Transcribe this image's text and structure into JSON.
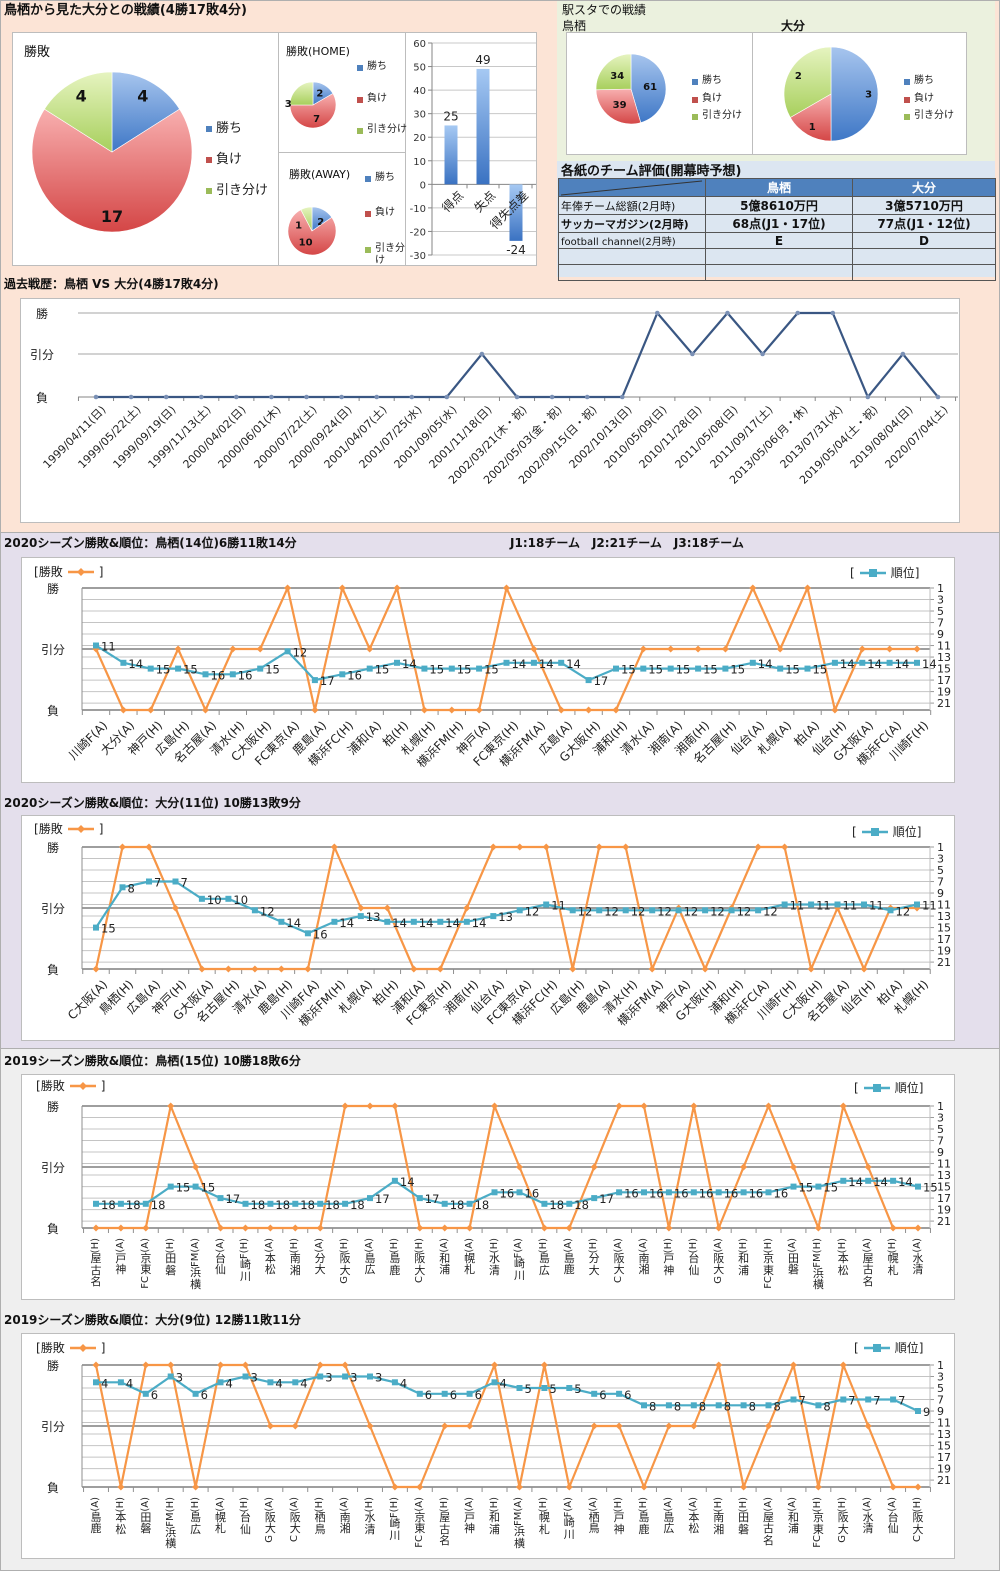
{
  "page": {
    "top_title": "鳥栖から見た大分との戦績(4勝17敗4分)",
    "stadium": {
      "title": "駅スタでの戦績"
    },
    "ratings": {
      "title": "各紙のチーム評価(開幕時予想)",
      "columns": [
        "",
        "鳥栖",
        "大分"
      ],
      "rows": [
        [
          "年俸チーム総額(2月時)",
          "5億8610万円",
          "3億5710万円"
        ],
        [
          "サッカーマガジン(2月時)",
          "68点(J1・17位)",
          "77点(J1・12位)"
        ],
        [
          "football channel(2月時)",
          "E",
          "D"
        ],
        [
          "",
          "",
          ""
        ],
        [
          "",
          "",
          ""
        ]
      ]
    },
    "league_info": "J1:18チーム　J2:21チーム　J3:18チーム"
  },
  "legend_brackets": {
    "open": "[",
    "close": "]"
  },
  "colors": {
    "win": "#4F81BD",
    "loss": "#C0504D",
    "draw": "#9BBB59",
    "result_line": "#F79646",
    "rank_line": "#4BACC6",
    "history_line": "#3A5783",
    "table_header": "#4F81BD"
  },
  "chart_data": [
    {
      "type": "pie",
      "title": "勝敗",
      "labels": [
        "勝ち",
        "負け",
        "引き分け"
      ],
      "values": [
        4,
        17,
        4
      ]
    },
    {
      "type": "pie",
      "title": "勝敗(HOME)",
      "labels": [
        "勝ち",
        "負け",
        "引き分け"
      ],
      "values": [
        2,
        7,
        3
      ]
    },
    {
      "type": "pie",
      "title": "勝敗(AWAY)",
      "labels": [
        "勝ち",
        "負け",
        "引き分け"
      ],
      "values": [
        2,
        10,
        1
      ]
    },
    {
      "type": "bar",
      "title": "",
      "categories": [
        "得点",
        "失点",
        "得失点差"
      ],
      "values": [
        25,
        49,
        -24
      ],
      "ylim": [
        -30,
        60
      ],
      "yticks": [
        60,
        50,
        40,
        30,
        20,
        10,
        0,
        -10,
        -20,
        -30
      ],
      "grid": true
    },
    {
      "type": "pie",
      "title": "鳥栖",
      "labels": [
        "勝ち",
        "負け",
        "引き分け"
      ],
      "values": [
        61,
        39,
        34
      ]
    },
    {
      "type": "pie",
      "title": "大分",
      "labels": [
        "勝ち",
        "負け",
        "引き分け"
      ],
      "values": [
        3,
        1,
        2
      ]
    },
    {
      "type": "line",
      "title": "過去戦歴：鳥栖 VS 大分(4勝17敗4分)",
      "categories": [
        "1999/04/11(日)",
        "1999/05/22(土)",
        "1999/09/19(日)",
        "1999/11/13(土)",
        "2000/04/02(日)",
        "2000/06/01(木)",
        "2000/07/22(土)",
        "2000/09/24(日)",
        "2001/04/07(土)",
        "2001/07/25(水)",
        "2001/09/05(水)",
        "2001/11/18(日)",
        "2002/03/21(木・祝)",
        "2002/05/03(金・祝)",
        "2002/09/15(日・祝)",
        "2002/10/13(日)",
        "2010/05/09(日)",
        "2010/11/28(日)",
        "2011/05/08(日)",
        "2011/09/17(土)",
        "2013/05/06(月・休)",
        "2013/07/31(水)",
        "2019/05/04(土・祝)",
        "2019/08/04(日)",
        "2020/07/04(土)"
      ],
      "y_ticks": [
        "勝",
        "引分",
        "負"
      ],
      "series": [
        {
          "name": "勝敗",
          "values": [
            "負",
            "負",
            "負",
            "負",
            "負",
            "負",
            "負",
            "負",
            "負",
            "負",
            "負",
            "引分",
            "負",
            "負",
            "負",
            "負",
            "勝",
            "引分",
            "勝",
            "引分",
            "勝",
            "勝",
            "負",
            "引分",
            "負"
          ]
        }
      ]
    },
    {
      "type": "line",
      "title": "2020シーズン勝敗&順位：鳥栖(14位)6勝11敗14分",
      "categories": [
        "川崎F(A)",
        "大分(A)",
        "神戸(H)",
        "広島(H)",
        "名古屋(A)",
        "清水(H)",
        "C大阪(H)",
        "FC東京(A)",
        "鹿島(A)",
        "横浜FC(H)",
        "浦和(A)",
        "柏(H)",
        "札幌(H)",
        "横浜FM(H)",
        "神戸(A)",
        "FC東京(H)",
        "横浜FM(A)",
        "広島(A)",
        "G大阪(H)",
        "浦和(H)",
        "清水(A)",
        "湘南(A)",
        "湘南(H)",
        "名古屋(H)",
        "仙台(A)",
        "札幌(A)",
        "柏(A)",
        "仙台(H)",
        "G大阪(A)",
        "横浜FC(A)",
        "川崎F(H)"
      ],
      "y_left_ticks": [
        "勝",
        "引分",
        "負"
      ],
      "y_right_ticks": [
        1,
        3,
        5,
        7,
        9,
        11,
        13,
        15,
        17,
        19,
        21
      ],
      "series": [
        {
          "name": "勝敗",
          "values": [
            "引分",
            "負",
            "負",
            "引分",
            "負",
            "引分",
            "引分",
            "勝",
            "負",
            "勝",
            "引分",
            "勝",
            "負",
            "負",
            "負",
            "勝",
            "引分",
            "負",
            "負",
            "負",
            "引分",
            "引分",
            "引分",
            "引分",
            "勝",
            "引分",
            "勝",
            "負",
            "引分",
            "引分",
            "引分"
          ]
        },
        {
          "name": "順位",
          "values": [
            11,
            14,
            15,
            15,
            16,
            16,
            15,
            12,
            17,
            16,
            15,
            14,
            15,
            15,
            15,
            14,
            14,
            14,
            17,
            15,
            15,
            15,
            15,
            15,
            14,
            15,
            15,
            14,
            14,
            14,
            14
          ]
        }
      ]
    },
    {
      "type": "line",
      "title": "2020シーズン勝敗&順位：大分(11位) 10勝13敗9分",
      "categories": [
        "C大阪(A)",
        "鳥栖(H)",
        "広島(A)",
        "神戸(H)",
        "G大阪(A)",
        "名古屋(H)",
        "清水(A)",
        "鹿島(H)",
        "川崎F(A)",
        "横浜FM(H)",
        "札幌(A)",
        "柏(H)",
        "浦和(A)",
        "FC東京(H)",
        "湘南(H)",
        "仙台(A)",
        "FC東京(A)",
        "横浜FC(H)",
        "広島(H)",
        "鹿島(A)",
        "清水(H)",
        "横浜FM(A)",
        "神戸(A)",
        "G大阪(H)",
        "浦和(H)",
        "横浜FC(A)",
        "川崎F(H)",
        "C大阪(H)",
        "名古屋(A)",
        "仙台(H)",
        "柏(A)",
        "札幌(H)"
      ],
      "y_left_ticks": [
        "勝",
        "引分",
        "負"
      ],
      "y_right_ticks": [
        1,
        3,
        5,
        7,
        9,
        11,
        13,
        15,
        17,
        19,
        21
      ],
      "series": [
        {
          "name": "勝敗",
          "values": [
            "負",
            "勝",
            "勝",
            "引分",
            "負",
            "負",
            "負",
            "負",
            "負",
            "勝",
            "引分",
            "引分",
            "負",
            "負",
            "引分",
            "勝",
            "勝",
            "勝",
            "負",
            "勝",
            "勝",
            "負",
            "引分",
            "負",
            "引分",
            "勝",
            "勝",
            "負",
            "引分",
            "負",
            "引分",
            "引分"
          ]
        },
        {
          "name": "順位",
          "values": [
            15,
            8,
            7,
            7,
            10,
            10,
            12,
            14,
            16,
            14,
            13,
            14,
            14,
            14,
            14,
            13,
            12,
            11,
            12,
            12,
            12,
            12,
            12,
            12,
            12,
            12,
            11,
            11,
            11,
            11,
            12,
            11
          ]
        }
      ]
    },
    {
      "type": "line",
      "title": "2019シーズン勝敗&順位：鳥栖(15位) 10勝18敗6分",
      "categories": [
        "名古屋(H)",
        "神戸(A)",
        "FC東京(A)",
        "磐田(H)",
        "横浜FM(A)",
        "仙台(A)",
        "川崎F(H)",
        "松本(A)",
        "湘南(H)",
        "大分(A)",
        "G大阪(H)",
        "広島(A)",
        "鹿島(H)",
        "C大阪(H)",
        "浦和(A)",
        "札幌(A)",
        "清水(H)",
        "川崎F(A)",
        "広島(H)",
        "鹿島(A)",
        "大分(H)",
        "C大阪(A)",
        "湘南(A)",
        "神戸(H)",
        "仙台(H)",
        "G大阪(A)",
        "浦和(H)",
        "FC東京(H)",
        "磐田(A)",
        "横浜FM(H)",
        "松本(H)",
        "名古屋(A)",
        "札幌(H)",
        "清水(A)"
      ],
      "y_left_ticks": [
        "勝",
        "引分",
        "負"
      ],
      "y_right_ticks": [
        1,
        3,
        5,
        7,
        9,
        11,
        13,
        15,
        17,
        19,
        21
      ],
      "series": [
        {
          "name": "勝敗",
          "values": [
            "負",
            "負",
            "負",
            "勝",
            "引分",
            "負",
            "負",
            "負",
            "負",
            "負",
            "勝",
            "勝",
            "勝",
            "負",
            "負",
            "負",
            "勝",
            "引分",
            "負",
            "負",
            "引分",
            "勝",
            "勝",
            "負",
            "勝",
            "負",
            "引分",
            "勝",
            "引分",
            "負",
            "勝",
            "引分",
            "負",
            "負"
          ]
        },
        {
          "name": "順位",
          "values": [
            18,
            18,
            18,
            15,
            15,
            17,
            18,
            18,
            18,
            18,
            18,
            17,
            14,
            17,
            18,
            18,
            16,
            16,
            18,
            18,
            17,
            16,
            16,
            16,
            16,
            16,
            16,
            16,
            15,
            15,
            14,
            14,
            14,
            15
          ]
        }
      ]
    },
    {
      "type": "line",
      "title": "2019シーズン勝敗&順位：大分(9位) 12勝11敗11分",
      "categories": [
        "鹿島(A)",
        "松本(H)",
        "磐田(A)",
        "横浜FM(H)",
        "広島(H)",
        "札幌(A)",
        "仙台(H)",
        "G大阪(A)",
        "C大阪(A)",
        "鳥栖(H)",
        "湘南(A)",
        "清水(H)",
        "川崎F(H)",
        "FC東京(A)",
        "名古屋(H)",
        "神戸(A)",
        "浦和(H)",
        "横浜FM(A)",
        "札幌(H)",
        "川崎F(A)",
        "鳥栖(A)",
        "神戸(H)",
        "鹿島(H)",
        "広島(A)",
        "松本(A)",
        "湘南(H)",
        "磐田(H)",
        "名古屋(A)",
        "浦和(A)",
        "FC東京(H)",
        "G大阪(H)",
        "清水(A)",
        "仙台(A)",
        "C大阪(H)"
      ],
      "y_left_ticks": [
        "勝",
        "引分",
        "負"
      ],
      "y_right_ticks": [
        1,
        3,
        5,
        7,
        9,
        11,
        13,
        15,
        17,
        19,
        21
      ],
      "series": [
        {
          "name": "勝敗",
          "values": [
            "勝",
            "負",
            "勝",
            "勝",
            "負",
            "勝",
            "勝",
            "引分",
            "引分",
            "勝",
            "勝",
            "引分",
            "負",
            "負",
            "引分",
            "引分",
            "勝",
            "負",
            "勝",
            "負",
            "引分",
            "引分",
            "負",
            "引分",
            "引分",
            "勝",
            "負",
            "引分",
            "勝",
            "負",
            "勝",
            "引分",
            "負",
            "負"
          ]
        },
        {
          "name": "順位",
          "values": [
            4,
            4,
            6,
            3,
            6,
            4,
            3,
            4,
            4,
            3,
            3,
            3,
            4,
            6,
            6,
            6,
            4,
            5,
            5,
            5,
            6,
            6,
            8,
            8,
            8,
            8,
            8,
            8,
            7,
            8,
            7,
            7,
            7,
            9
          ]
        }
      ]
    }
  ]
}
